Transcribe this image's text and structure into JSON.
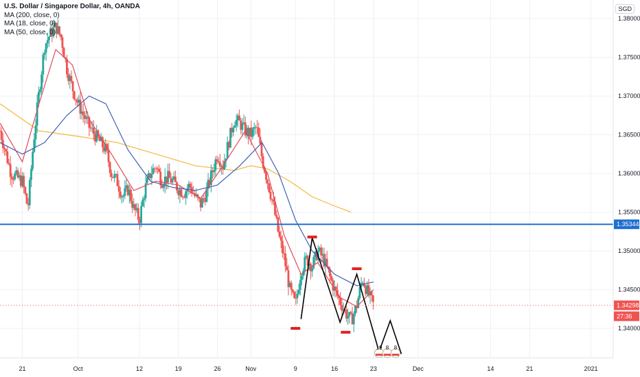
{
  "header": {
    "title": "U.S. Dollar / Singapore Dollar, 4h, OANDA",
    "indicators": [
      "MA (200, close, 0)",
      "MA (18, close, 0)",
      "MA (50, close, 0)"
    ],
    "currency": "SGD"
  },
  "price_axis": {
    "ticks": [
      "1.38000",
      "1.37500",
      "1.37000",
      "1.36500",
      "1.36000",
      "1.35500",
      "1.35000",
      "1.34500",
      "1.34000"
    ],
    "tick_values": [
      1.38,
      1.375,
      1.37,
      1.365,
      1.36,
      1.355,
      1.35,
      1.345,
      1.34
    ],
    "level_label": "1.35344",
    "current_price_label": "1.34298",
    "countdown_label": "27:36"
  },
  "time_axis": {
    "labels": [
      "21",
      "Oct",
      "12",
      "19",
      "26",
      "Nov",
      "9",
      "16",
      "23",
      "Dec",
      "14",
      "21",
      "2021"
    ]
  },
  "colors": {
    "bull": "#26a69a",
    "bear": "#ef5350",
    "ma200": "#f5b73a",
    "ma18": "#e24a5a",
    "ma50": "#3e5fb5",
    "level": "#1e6fcf",
    "marker": "#e02020",
    "projection": "#000000",
    "grid": "#eef0f4",
    "current_price_tag": "#ef5350",
    "level_tag": "#1e6fcf"
  },
  "badges": [
    "19",
    "8",
    "8"
  ],
  "chart_data": {
    "type": "candlestick",
    "title": "U.S. Dollar / Singapore Dollar, 4h, OANDA",
    "ylim": [
      1.3362,
      1.3824
    ],
    "xlim": [
      "2020-09-17",
      "2021-01-05"
    ],
    "y_scale": "linear",
    "grid": true,
    "horizontal_level": 1.35344,
    "last_price": 1.34298,
    "price_path": [
      [
        "2020-09-17",
        1.3655
      ],
      [
        "2020-09-19",
        1.36
      ],
      [
        "2020-09-21",
        1.359
      ],
      [
        "2020-09-22",
        1.3555
      ],
      [
        "2020-09-23",
        1.364
      ],
      [
        "2020-09-24",
        1.3705
      ],
      [
        "2020-09-25",
        1.3765
      ],
      [
        "2020-09-26",
        1.378
      ],
      [
        "2020-09-27",
        1.379
      ],
      [
        "2020-09-28",
        1.3775
      ],
      [
        "2020-09-29",
        1.3735
      ],
      [
        "2020-09-30",
        1.371
      ],
      [
        "2020-10-01",
        1.369
      ],
      [
        "2020-10-02",
        1.3675
      ],
      [
        "2020-10-03",
        1.366
      ],
      [
        "2020-10-05",
        1.364
      ],
      [
        "2020-10-06",
        1.363
      ],
      [
        "2020-10-07",
        1.36
      ],
      [
        "2020-10-08",
        1.359
      ],
      [
        "2020-10-09",
        1.357
      ],
      [
        "2020-10-10",
        1.358
      ],
      [
        "2020-10-11",
        1.3555
      ],
      [
        "2020-10-12",
        1.354
      ],
      [
        "2020-10-13",
        1.358
      ],
      [
        "2020-10-14",
        1.36
      ],
      [
        "2020-10-15",
        1.361
      ],
      [
        "2020-10-16",
        1.359
      ],
      [
        "2020-10-17",
        1.3595
      ],
      [
        "2020-10-18",
        1.359
      ],
      [
        "2020-10-19",
        1.358
      ],
      [
        "2020-10-20",
        1.3575
      ],
      [
        "2020-10-21",
        1.3585
      ],
      [
        "2020-10-22",
        1.357
      ],
      [
        "2020-10-23",
        1.356
      ],
      [
        "2020-10-24",
        1.3575
      ],
      [
        "2020-10-25",
        1.36
      ],
      [
        "2020-10-26",
        1.3625
      ],
      [
        "2020-10-27",
        1.361
      ],
      [
        "2020-10-28",
        1.364
      ],
      [
        "2020-10-29",
        1.367
      ],
      [
        "2020-10-30",
        1.3665
      ],
      [
        "2020-10-31",
        1.3655
      ],
      [
        "2020-11-01",
        1.365
      ],
      [
        "2020-11-02",
        1.366
      ],
      [
        "2020-11-03",
        1.362
      ],
      [
        "2020-11-04",
        1.359
      ],
      [
        "2020-11-05",
        1.356
      ],
      [
        "2020-11-06",
        1.352
      ],
      [
        "2020-11-07",
        1.349
      ],
      [
        "2020-11-08",
        1.345
      ],
      [
        "2020-11-09",
        1.343
      ],
      [
        "2020-11-10",
        1.3475
      ],
      [
        "2020-11-11",
        1.349
      ],
      [
        "2020-11-12",
        1.348
      ],
      [
        "2020-11-13",
        1.35
      ],
      [
        "2020-11-14",
        1.349
      ],
      [
        "2020-11-15",
        1.347
      ],
      [
        "2020-11-16",
        1.345
      ],
      [
        "2020-11-17",
        1.3435
      ],
      [
        "2020-11-18",
        1.342
      ],
      [
        "2020-11-19",
        1.341
      ],
      [
        "2020-11-20",
        1.343
      ],
      [
        "2020-11-21",
        1.3465
      ],
      [
        "2020-11-22",
        1.3445
      ],
      [
        "2020-11-23",
        1.343
      ]
    ],
    "ma200_path": [
      [
        "2020-09-17",
        1.369
      ],
      [
        "2020-09-24",
        1.3655
      ],
      [
        "2020-10-01",
        1.3648
      ],
      [
        "2020-10-08",
        1.364
      ],
      [
        "2020-10-15",
        1.3625
      ],
      [
        "2020-10-22",
        1.361
      ],
      [
        "2020-10-29",
        1.3604
      ],
      [
        "2020-11-01",
        1.361
      ],
      [
        "2020-11-04",
        1.3606
      ],
      [
        "2020-11-08",
        1.359
      ],
      [
        "2020-11-12",
        1.357
      ],
      [
        "2020-11-16",
        1.3558
      ],
      [
        "2020-11-19",
        1.355
      ]
    ],
    "ma18_path": [
      [
        "2020-09-17",
        1.3665
      ],
      [
        "2020-09-21",
        1.3615
      ],
      [
        "2020-09-24",
        1.369
      ],
      [
        "2020-09-27",
        1.376
      ],
      [
        "2020-09-30",
        1.374
      ],
      [
        "2020-10-03",
        1.367
      ],
      [
        "2020-10-07",
        1.3625
      ],
      [
        "2020-10-11",
        1.3578
      ],
      [
        "2020-10-15",
        1.359
      ],
      [
        "2020-10-19",
        1.3585
      ],
      [
        "2020-10-23",
        1.3568
      ],
      [
        "2020-10-27",
        1.361
      ],
      [
        "2020-10-31",
        1.3655
      ],
      [
        "2020-11-04",
        1.36
      ],
      [
        "2020-11-07",
        1.352
      ],
      [
        "2020-11-10",
        1.347
      ],
      [
        "2020-11-13",
        1.3485
      ],
      [
        "2020-11-17",
        1.344
      ],
      [
        "2020-11-20",
        1.3428
      ],
      [
        "2020-11-23",
        1.345
      ]
    ],
    "ma50_path": [
      [
        "2020-09-17",
        1.364
      ],
      [
        "2020-09-21",
        1.3625
      ],
      [
        "2020-09-25",
        1.364
      ],
      [
        "2020-09-29",
        1.3675
      ],
      [
        "2020-10-03",
        1.37
      ],
      [
        "2020-10-06",
        1.369
      ],
      [
        "2020-10-10",
        1.363
      ],
      [
        "2020-10-14",
        1.359
      ],
      [
        "2020-10-18",
        1.3582
      ],
      [
        "2020-10-22",
        1.3578
      ],
      [
        "2020-10-26",
        1.3585
      ],
      [
        "2020-10-30",
        1.361
      ],
      [
        "2020-11-03",
        1.364
      ],
      [
        "2020-11-06",
        1.36
      ],
      [
        "2020-11-09",
        1.354
      ],
      [
        "2020-11-12",
        1.35
      ],
      [
        "2020-11-16",
        1.347
      ],
      [
        "2020-11-20",
        1.3455
      ],
      [
        "2020-11-23",
        1.346
      ]
    ],
    "zigzag": [
      [
        "2020-11-10",
        1.3412
      ],
      [
        "2020-11-12",
        1.3517
      ],
      [
        "2020-11-17",
        1.3408
      ],
      [
        "2020-11-20",
        1.347
      ],
      [
        "2020-11-24",
        1.337
      ],
      [
        "2020-11-26",
        1.341
      ],
      [
        "2020-11-28",
        1.3367
      ]
    ],
    "markers": [
      [
        "2020-11-09",
        1.34
      ],
      [
        "2020-11-12",
        1.3518
      ],
      [
        "2020-11-18",
        1.3395
      ],
      [
        "2020-11-20",
        1.3477
      ]
    ]
  }
}
